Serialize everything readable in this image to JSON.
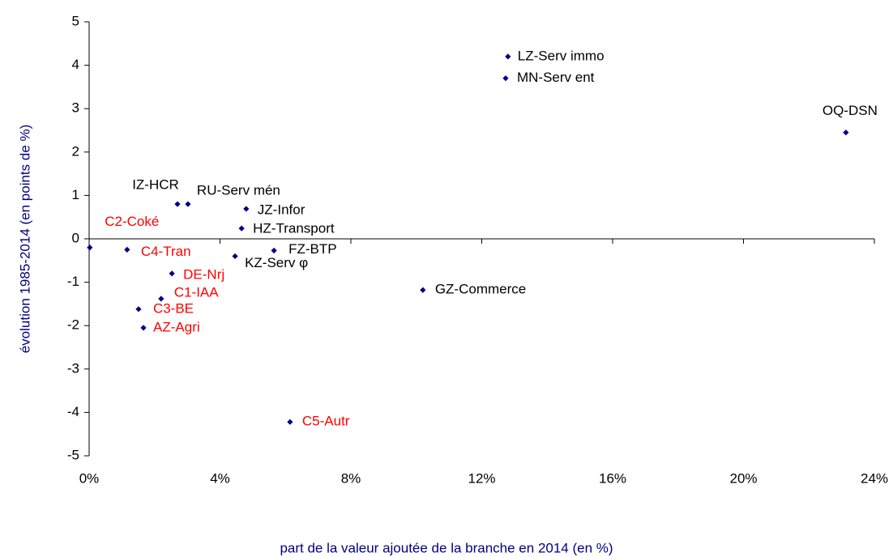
{
  "chart_data": {
    "type": "scatter",
    "xlabel": "part de la valeur ajoutée de la branche en 2014 (en %)",
    "ylabel": "évolution 1985-2014 (en points de %)",
    "point_labels": [
      "LZ-Serv immo",
      "MN-Serv ent",
      "OQ-DSN",
      "IZ-HCR",
      "RU-Serv mén",
      "JZ-Infor",
      "HZ-Transport",
      "C2-Coké",
      "C4-Tran",
      "KZ-Serv φ",
      "FZ-BTP",
      "DE-Nrj",
      "GZ-Commerce",
      "C1-IAA",
      "C3-BE",
      "AZ-Agri",
      "C5-Autr"
    ],
    "x": [
      12.8,
      12.73,
      23.13,
      2.7,
      3.02,
      4.8,
      4.66,
      0.02,
      1.16,
      4.46,
      5.65,
      2.53,
      10.2,
      2.2,
      1.51,
      1.66,
      6.14
    ],
    "values": [
      4.2,
      3.7,
      2.45,
      0.8,
      0.8,
      0.69,
      0.24,
      -0.2,
      -0.25,
      -0.4,
      -0.27,
      -0.8,
      -1.18,
      -1.38,
      -1.62,
      -2.05,
      -4.22
    ],
    "point_label_colors": [
      "#000000",
      "#000000",
      "#000000",
      "#000000",
      "#000000",
      "#000000",
      "#000000",
      "#ff0000",
      "#ff0000",
      "#000000",
      "#000000",
      "#ff0000",
      "#000000",
      "#ff0000",
      "#ff0000",
      "#ff0000",
      "#ff0000"
    ],
    "color": "#000080",
    "xlim": [
      0,
      24
    ],
    "xticks": [
      {
        "value": 0,
        "label": "0%"
      },
      {
        "value": 4,
        "label": "4%"
      },
      {
        "value": 8,
        "label": "8%"
      },
      {
        "value": 12,
        "label": "12%"
      },
      {
        "value": 16,
        "label": "16%"
      },
      {
        "value": 20,
        "label": "20%"
      },
      {
        "value": 24,
        "label": "24%"
      }
    ],
    "ylim": [
      -5,
      5
    ],
    "yticks": [
      -5,
      -4,
      -3,
      -2,
      -1,
      0,
      1,
      2,
      3,
      4,
      5
    ]
  }
}
